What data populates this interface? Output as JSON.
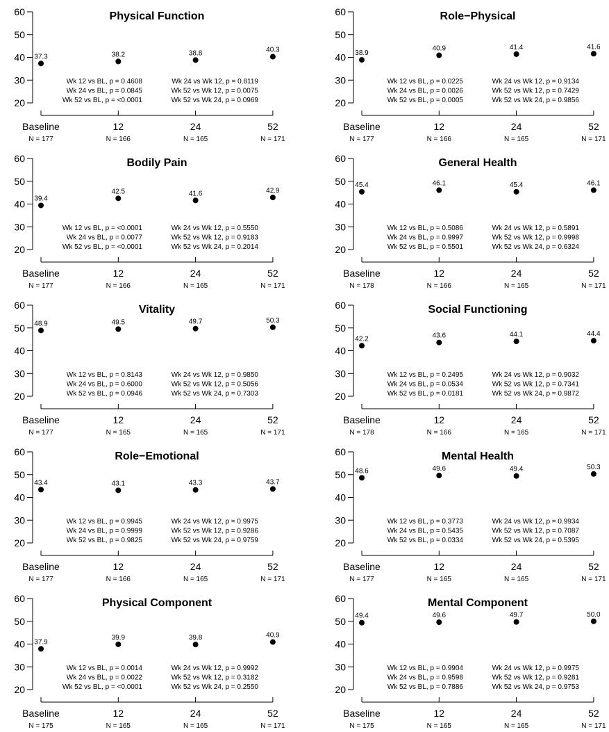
{
  "chart_data": [
    {
      "type": "scatter",
      "title": "Physical Function",
      "categories": [
        "Baseline",
        "12",
        "24",
        "52"
      ],
      "n_labels": [
        "N = 177",
        "N = 166",
        "N = 165",
        "N = 171"
      ],
      "values": [
        37.3,
        38.2,
        38.8,
        40.3
      ],
      "ylim": [
        20,
        60
      ],
      "yticks": [
        20,
        30,
        40,
        50,
        60
      ],
      "pvalues_left": [
        "Wk 12 vs BL, p = 0.4608",
        "Wk 24 vs BL, p = 0.0845",
        "Wk 52 vs BL, p = <0.0001"
      ],
      "pvalues_right": [
        "Wk 24 vs Wk 12, p = 0.8119",
        "Wk 52 vs Wk 12, p = 0.0075",
        "Wk 52 vs Wk 24, p = 0.0969"
      ]
    },
    {
      "type": "scatter",
      "title": "Role−Physical",
      "categories": [
        "Baseline",
        "12",
        "24",
        "52"
      ],
      "n_labels": [
        "N = 177",
        "N = 166",
        "N = 165",
        "N = 171"
      ],
      "values": [
        38.9,
        40.9,
        41.4,
        41.6
      ],
      "ylim": [
        20,
        60
      ],
      "yticks": [
        20,
        30,
        40,
        50,
        60
      ],
      "pvalues_left": [
        "Wk 12 vs BL, p = 0.0225",
        "Wk 24 vs BL, p = 0.0026",
        "Wk 52 vs BL, p = 0.0005"
      ],
      "pvalues_right": [
        "Wk 24 vs Wk 12, p = 0.9134",
        "Wk 52 vs Wk 12, p = 0.7429",
        "Wk 52 vs Wk 24, p = 0.9856"
      ]
    },
    {
      "type": "scatter",
      "title": "Bodily Pain",
      "categories": [
        "Baseline",
        "12",
        "24",
        "52"
      ],
      "n_labels": [
        "N = 177",
        "N = 166",
        "N = 165",
        "N = 171"
      ],
      "values": [
        39.4,
        42.5,
        41.6,
        42.9
      ],
      "ylim": [
        20,
        60
      ],
      "yticks": [
        20,
        30,
        40,
        50,
        60
      ],
      "pvalues_left": [
        "Wk 12 vs BL, p = <0.0001",
        "Wk 24 vs BL, p = 0.0077",
        "Wk 52 vs BL, p = <0.0001"
      ],
      "pvalues_right": [
        "Wk 24 vs Wk 12, p = 0.5550",
        "Wk 52 vs Wk 12, p = 0.9183",
        "Wk 52 vs Wk 24, p = 0.2014"
      ]
    },
    {
      "type": "scatter",
      "title": "General Health",
      "categories": [
        "Baseline",
        "12",
        "24",
        "52"
      ],
      "n_labels": [
        "N = 178",
        "N = 166",
        "N = 165",
        "N = 171"
      ],
      "values": [
        45.4,
        46.1,
        45.4,
        46.1
      ],
      "ylim": [
        20,
        60
      ],
      "yticks": [
        20,
        30,
        40,
        50,
        60
      ],
      "pvalues_left": [
        "Wk 12 vs BL, p = 0.5086",
        "Wk 24 vs BL, p = 0.9997",
        "Wk 52 vs BL, p = 0.5501"
      ],
      "pvalues_right": [
        "Wk 24 vs Wk 12, p = 0.5891",
        "Wk 52 vs Wk 12, p = 0.9998",
        "Wk 52 vs Wk 24, p = 0.6324"
      ]
    },
    {
      "type": "scatter",
      "title": "Vitality",
      "categories": [
        "Baseline",
        "12",
        "24",
        "52"
      ],
      "n_labels": [
        "N = 177",
        "N = 165",
        "N = 165",
        "N = 171"
      ],
      "values": [
        48.9,
        49.5,
        49.7,
        50.3
      ],
      "ylim": [
        20,
        60
      ],
      "yticks": [
        20,
        30,
        40,
        50,
        60
      ],
      "pvalues_left": [
        "Wk 12 vs BL, p = 0.8143",
        "Wk 24 vs BL, p = 0.6000",
        "Wk 52 vs BL, p = 0.0946"
      ],
      "pvalues_right": [
        "Wk 24 vs Wk 12, p = 0.9850",
        "Wk 52 vs Wk 12, p = 0.5056",
        "Wk 52 vs Wk 24, p = 0.7303"
      ]
    },
    {
      "type": "scatter",
      "title": "Social Functioning",
      "categories": [
        "Baseline",
        "12",
        "24",
        "52"
      ],
      "n_labels": [
        "N = 178",
        "N = 166",
        "N = 165",
        "N = 171"
      ],
      "values": [
        42.2,
        43.6,
        44.1,
        44.4
      ],
      "ylim": [
        20,
        60
      ],
      "yticks": [
        20,
        30,
        40,
        50,
        60
      ],
      "pvalues_left": [
        "Wk 12 vs BL, p = 0.2495",
        "Wk 24 vs BL, p = 0.0534",
        "Wk 52 vs BL, p = 0.0181"
      ],
      "pvalues_right": [
        "Wk 24 vs Wk 12, p = 0.9032",
        "Wk 52 vs Wk 12, p = 0.7341",
        "Wk 52 vs Wk 24, p = 0.9872"
      ]
    },
    {
      "type": "scatter",
      "title": "Role−Emotional",
      "categories": [
        "Baseline",
        "12",
        "24",
        "52"
      ],
      "n_labels": [
        "N = 177",
        "N = 166",
        "N = 165",
        "N = 171"
      ],
      "values": [
        43.4,
        43.1,
        43.3,
        43.7
      ],
      "ylim": [
        20,
        60
      ],
      "yticks": [
        20,
        30,
        40,
        50,
        60
      ],
      "pvalues_left": [
        "Wk 12 vs BL, p = 0.9945",
        "Wk 24 vs BL, p = 0.9999",
        "Wk 52 vs BL, p = 0.9825"
      ],
      "pvalues_right": [
        "Wk 24 vs Wk 12, p = 0.9975",
        "Wk 52 vs Wk 12, p = 0.9286",
        "Wk 52 vs Wk 24, p = 0.9759"
      ]
    },
    {
      "type": "scatter",
      "title": "Mental Health",
      "categories": [
        "Baseline",
        "12",
        "24",
        "52"
      ],
      "n_labels": [
        "N = 177",
        "N = 165",
        "N = 165",
        "N = 171"
      ],
      "values": [
        48.6,
        49.6,
        49.4,
        50.3
      ],
      "ylim": [
        20,
        60
      ],
      "yticks": [
        20,
        30,
        40,
        50,
        60
      ],
      "pvalues_left": [
        "Wk 12 vs BL, p = 0.3773",
        "Wk 24 vs BL, p = 0.5435",
        "Wk 52 vs BL, p = 0.0334"
      ],
      "pvalues_right": [
        "Wk 24 vs Wk 12, p = 0.9934",
        "Wk 52 vs Wk 12, p = 0.7087",
        "Wk 52 vs Wk 24, p = 0.5395"
      ]
    },
    {
      "type": "scatter",
      "title": "Physical Component",
      "categories": [
        "Baseline",
        "12",
        "24",
        "52"
      ],
      "n_labels": [
        "N = 175",
        "N = 165",
        "N = 165",
        "N = 171"
      ],
      "values": [
        37.9,
        39.9,
        39.8,
        40.9
      ],
      "ylim": [
        20,
        60
      ],
      "yticks": [
        20,
        30,
        40,
        50,
        60
      ],
      "pvalues_left": [
        "Wk 12 vs BL, p = 0.0014",
        "Wk 24 vs BL, p = 0.0022",
        "Wk 52 vs BL, p = <0.0001"
      ],
      "pvalues_right": [
        "Wk 24 vs Wk 12, p = 0.9992",
        "Wk 52 vs Wk 12, p = 0.3182",
        "Wk 52 vs Wk 24, p = 0.2550"
      ]
    },
    {
      "type": "scatter",
      "title": "Mental Component",
      "categories": [
        "Baseline",
        "12",
        "24",
        "52"
      ],
      "n_labels": [
        "N = 175",
        "N = 165",
        "N = 165",
        "N = 171"
      ],
      "values": [
        49.4,
        49.6,
        49.7,
        50.0
      ],
      "ylim": [
        20,
        60
      ],
      "yticks": [
        20,
        30,
        40,
        50,
        60
      ],
      "pvalues_left": [
        "Wk 12 vs BL, p = 0.9904",
        "Wk 24 vs BL, p = 0.9598",
        "Wk 52 vs BL, p = 0.7886"
      ],
      "pvalues_right": [
        "Wk 24 vs Wk 12, p = 0.9975",
        "Wk 52 vs Wk 12, p = 0.9281",
        "Wk 52 vs Wk 24, p = 0.9753"
      ]
    }
  ]
}
